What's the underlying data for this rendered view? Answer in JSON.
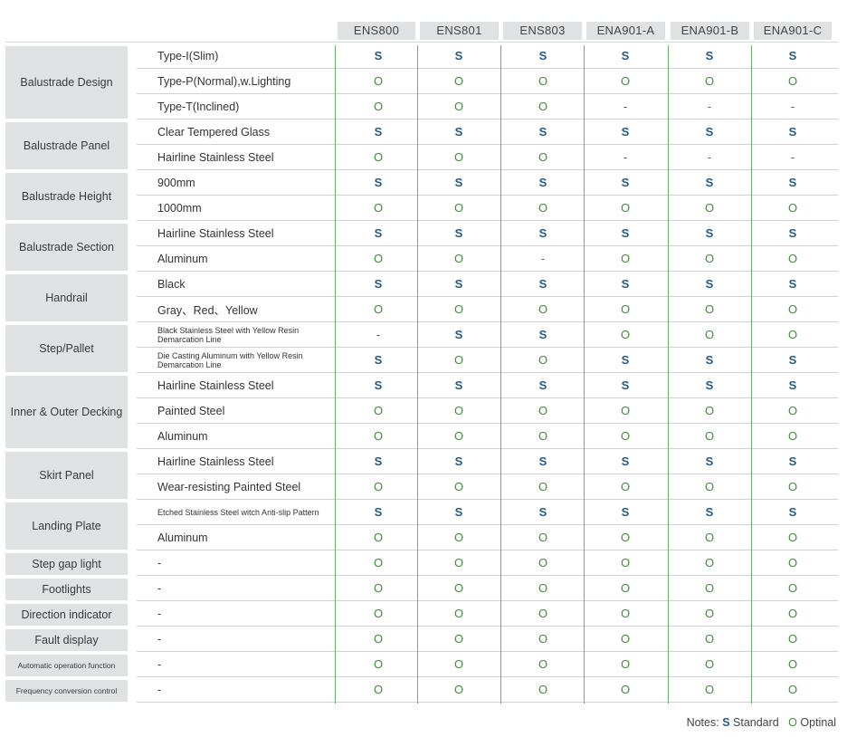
{
  "models": [
    "ENS800",
    "ENS801",
    "ENS803",
    "ENA901-A",
    "ENA901-B",
    "ENA901-C"
  ],
  "groups": [
    {
      "name": "Balustrade Design",
      "rows": [
        {
          "label": "Type-I(Slim)",
          "values": [
            "S",
            "S",
            "S",
            "S",
            "S",
            "S"
          ]
        },
        {
          "label": "Type-P(Normal),w.Lighting",
          "values": [
            "O",
            "O",
            "O",
            "O",
            "O",
            "O"
          ]
        },
        {
          "label": "Type-T(Inclined)",
          "values": [
            "O",
            "O",
            "O",
            "-",
            "-",
            "-"
          ]
        }
      ]
    },
    {
      "name": "Balustrade Panel",
      "rows": [
        {
          "label": "Clear Tempered Glass",
          "values": [
            "S",
            "S",
            "S",
            "S",
            "S",
            "S"
          ]
        },
        {
          "label": "Hairline Stainless Steel",
          "values": [
            "O",
            "O",
            "O",
            "-",
            "-",
            "-"
          ]
        }
      ]
    },
    {
      "name": "Balustrade Height",
      "rows": [
        {
          "label": "900mm",
          "values": [
            "S",
            "S",
            "S",
            "S",
            "S",
            "S"
          ]
        },
        {
          "label": "1000mm",
          "values": [
            "O",
            "O",
            "O",
            "O",
            "O",
            "O"
          ]
        }
      ]
    },
    {
      "name": "Balustrade Section",
      "rows": [
        {
          "label": "Hairline Stainless Steel",
          "values": [
            "S",
            "S",
            "S",
            "S",
            "S",
            "S"
          ]
        },
        {
          "label": "Aluminum",
          "values": [
            "O",
            "O",
            "-",
            "O",
            "O",
            "O"
          ]
        }
      ]
    },
    {
      "name": "Handrail",
      "rows": [
        {
          "label": "Black",
          "values": [
            "S",
            "S",
            "S",
            "S",
            "S",
            "S"
          ]
        },
        {
          "label": "Gray、Red、Yellow",
          "values": [
            "O",
            "O",
            "O",
            "O",
            "O",
            "O"
          ]
        }
      ]
    },
    {
      "name": "Step/Pallet",
      "rows": [
        {
          "label": "Black Stainless Steel with Yellow Resin Demarcation Line",
          "small": true,
          "values": [
            "-",
            "S",
            "S",
            "O",
            "O",
            "O"
          ]
        },
        {
          "label": "Die Casting Aluminum with Yellow Resin Demarcation Line",
          "small": true,
          "values": [
            "S",
            "O",
            "O",
            "S",
            "S",
            "S"
          ]
        }
      ]
    },
    {
      "name": "Inner & Outer Decking",
      "rows": [
        {
          "label": "Hairline Stainless Steel",
          "values": [
            "S",
            "S",
            "S",
            "S",
            "S",
            "S"
          ]
        },
        {
          "label": "Painted Steel",
          "values": [
            "O",
            "O",
            "O",
            "O",
            "O",
            "O"
          ]
        },
        {
          "label": "Aluminum",
          "values": [
            "O",
            "O",
            "O",
            "O",
            "O",
            "O"
          ]
        }
      ]
    },
    {
      "name": "Skirt Panel",
      "rows": [
        {
          "label": "Hairline Stainless Steel",
          "values": [
            "S",
            "S",
            "S",
            "S",
            "S",
            "S"
          ]
        },
        {
          "label": "Wear-resisting Painted Steel",
          "values": [
            "O",
            "O",
            "O",
            "O",
            "O",
            "O"
          ]
        }
      ]
    },
    {
      "name": "Landing Plate",
      "rows": [
        {
          "label": "Etched Stainless Steel witch Anti-slip Pattern",
          "small": true,
          "values": [
            "S",
            "S",
            "S",
            "S",
            "S",
            "S"
          ]
        },
        {
          "label": "Aluminum",
          "values": [
            "O",
            "O",
            "O",
            "O",
            "O",
            "O"
          ]
        }
      ]
    },
    {
      "name": "Step gap light",
      "rows": [
        {
          "label": "-",
          "values": [
            "O",
            "O",
            "O",
            "O",
            "O",
            "O"
          ]
        }
      ]
    },
    {
      "name": "Footlights",
      "rows": [
        {
          "label": "-",
          "values": [
            "O",
            "O",
            "O",
            "O",
            "O",
            "O"
          ]
        }
      ]
    },
    {
      "name": "Direction indicator",
      "rows": [
        {
          "label": "-",
          "values": [
            "O",
            "O",
            "O",
            "O",
            "O",
            "O"
          ]
        }
      ]
    },
    {
      "name": "Fault display",
      "rows": [
        {
          "label": "-",
          "values": [
            "O",
            "O",
            "O",
            "O",
            "O",
            "O"
          ]
        }
      ]
    },
    {
      "name": "Automatic operation function",
      "tiny": true,
      "rows": [
        {
          "label": "-",
          "values": [
            "O",
            "O",
            "O",
            "O",
            "O",
            "O"
          ]
        }
      ]
    },
    {
      "name": "Frequency conversion control",
      "tiny": true,
      "rows": [
        {
          "label": "-",
          "values": [
            "O",
            "O",
            "O",
            "O",
            "O",
            "O"
          ]
        }
      ]
    }
  ],
  "notes": {
    "prefix": "Notes:",
    "s_symbol": "S",
    "s_label": "Standard",
    "o_symbol": "O",
    "o_label": "Optinal"
  },
  "colors": {
    "standard": "#1f5b8a",
    "optional": "#3f8d3a",
    "separator": "#6cb26a",
    "header_bg": "#dfe1e3"
  }
}
